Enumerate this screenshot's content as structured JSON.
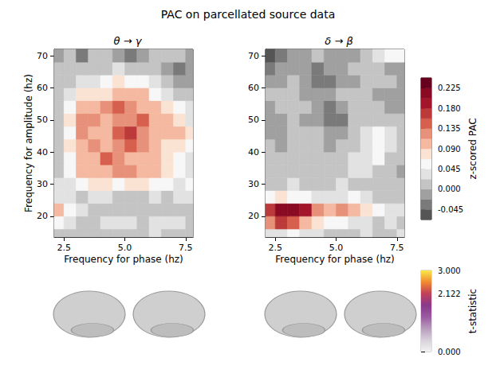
{
  "chart_data": {
    "type": "heatmap",
    "title": "PAC on parcellated source data",
    "xlim": [
      2.1,
      7.8
    ],
    "ylim": [
      13.5,
      72
    ],
    "xticks": [
      2.5,
      {
        "value": 5,
        "label": "5.0"
      },
      7.5
    ],
    "yticks": [
      20,
      30,
      40,
      50,
      60,
      70
    ],
    "panels": [
      {
        "title": "θ → γ",
        "xlabel": "Frequency for phase (hz)",
        "ylabel": "Frequency for amplitude (hz)",
        "x": [
          2.25,
          2.75,
          3.25,
          3.75,
          4.25,
          4.75,
          5.25,
          5.75,
          6.25,
          6.75,
          7.25,
          7.75
        ],
        "y": [
          14,
          18,
          22,
          26,
          30,
          34,
          38,
          42,
          46,
          50,
          54,
          58,
          62,
          66,
          70
        ],
        "values": [
          [
            0.02,
            0.01,
            0,
            0.01,
            0.02,
            0.02,
            0.01,
            0.02,
            0.03,
            0.02,
            0.01,
            0.02
          ],
          [
            0.06,
            0.03,
            0.02,
            0.02,
            0.03,
            0.04,
            0.03,
            0.02,
            0.03,
            0.04,
            0.03,
            0.02
          ],
          [
            0.1,
            0.05,
            0.03,
            0.02,
            0.01,
            0.02,
            0.01,
            0,
            0.01,
            0.02,
            0.01,
            0
          ],
          [
            0.04,
            0.03,
            0.02,
            0.04,
            0.03,
            0.02,
            0.01,
            0.02,
            0.03,
            0.02,
            0.03,
            0.04
          ],
          [
            0.03,
            0.04,
            0.06,
            0.08,
            0.07,
            0.06,
            0.07,
            0.08,
            0.06,
            0.05,
            0.04,
            0.05
          ],
          [
            0.02,
            0.05,
            0.09,
            0.11,
            0.1,
            0.12,
            0.13,
            0.1,
            0.09,
            0.07,
            0.05,
            0.04
          ],
          [
            0.01,
            0.06,
            0.1,
            0.11,
            0.14,
            0.12,
            0.11,
            0.1,
            0.11,
            0.08,
            0.05,
            0.03
          ],
          [
            0.02,
            0.07,
            0.11,
            0.12,
            0.1,
            0.13,
            0.15,
            0.12,
            0.09,
            0.07,
            0.08,
            0.06
          ],
          [
            0.01,
            0.06,
            0.12,
            0.11,
            0.1,
            0.14,
            0.16,
            0.12,
            0.1,
            0.09,
            0.1,
            0.07
          ],
          [
            0.02,
            0.08,
            0.13,
            0.12,
            0.11,
            0.12,
            0.13,
            0.14,
            0.11,
            0.1,
            0.08,
            0.04
          ],
          [
            0.01,
            0.06,
            0.11,
            0.1,
            0.12,
            0.14,
            0.12,
            0.1,
            0.09,
            0.07,
            0.05,
            0.03
          ],
          [
            0,
            0.03,
            0.07,
            0.08,
            0.07,
            0.09,
            0.11,
            0.09,
            0.06,
            0.04,
            0.02,
            0.01
          ],
          [
            0,
            0.01,
            0.03,
            0.04,
            0.05,
            0.07,
            0.06,
            0.05,
            0.03,
            0.01,
            -0.01,
            -0.01
          ],
          [
            0.01,
            0,
            0.01,
            0.02,
            0.02,
            0.03,
            0.02,
            0.01,
            0,
            -0.02,
            -0.03,
            -0.02
          ],
          [
            -0.01,
            0,
            -0.03,
            0,
            0.01,
            -0.01,
            -0.03,
            -0.02,
            0,
            0.01,
            0,
            -0.01
          ]
        ]
      },
      {
        "title": "δ → β",
        "xlabel": "Frequency for phase (hz)",
        "x": [
          2.25,
          2.75,
          3.25,
          3.75,
          4.25,
          4.75,
          5.25,
          5.75,
          6.25,
          6.75,
          7.25,
          7.75
        ],
        "y": [
          14,
          18,
          22,
          26,
          30,
          34,
          38,
          42,
          46,
          50,
          54,
          58,
          62,
          66,
          70
        ],
        "values": [
          [
            0.03,
            0.04,
            0.05,
            0.04,
            0.03,
            0.02,
            0.01,
            0.02,
            0.03,
            0.02,
            0.02,
            0.03
          ],
          [
            0.12,
            0.16,
            0.15,
            0.11,
            0.07,
            0.05,
            0.06,
            0.04,
            0.03,
            0.02,
            0.03,
            0.02
          ],
          [
            0.16,
            0.22,
            0.21,
            0.18,
            0.13,
            0.11,
            0.12,
            0.1,
            0.08,
            0.05,
            0.03,
            0.03
          ],
          [
            0.05,
            0.07,
            0.06,
            0.05,
            0.04,
            0.03,
            0.04,
            0.05,
            0.03,
            0.02,
            0.01,
            0
          ],
          [
            0.01,
            0.02,
            0.03,
            0.02,
            0.01,
            0.02,
            0.03,
            0.02,
            0.01,
            0,
            0.01,
            0.02
          ],
          [
            0,
            0.01,
            0.02,
            0.01,
            0,
            0.01,
            0.02,
            0.04,
            0.03,
            0.01,
            0,
            -0.01
          ],
          [
            0.01,
            0,
            0.01,
            0.02,
            0.01,
            0,
            0.01,
            0.03,
            0.04,
            0.05,
            0.02,
            0.01
          ],
          [
            0,
            -0.01,
            0,
            0.01,
            0,
            -0.01,
            0,
            0.02,
            0.04,
            0.06,
            0.03,
            0.01
          ],
          [
            -0.01,
            -0.02,
            0,
            0.01,
            0,
            -0.02,
            -0.01,
            0.01,
            0.03,
            0.05,
            0.04,
            0.02
          ],
          [
            -0.02,
            -0.01,
            0,
            -0.01,
            -0.02,
            -0.04,
            -0.03,
            0,
            0.01,
            0.02,
            0.01,
            0
          ],
          [
            -0.01,
            0,
            0.01,
            0,
            -0.01,
            -0.03,
            -0.02,
            0,
            0.01,
            0,
            -0.01,
            -0.02
          ],
          [
            0,
            0.01,
            0,
            -0.01,
            -0.02,
            -0.01,
            0,
            0.01,
            0,
            -0.01,
            -0.02,
            -0.01
          ],
          [
            -0.02,
            -0.01,
            0,
            -0.02,
            -0.03,
            -0.04,
            -0.02,
            -0.01,
            0,
            0.01,
            0,
            -0.01
          ],
          [
            -0.03,
            -0.02,
            -0.01,
            -0.02,
            -0.03,
            -0.02,
            -0.01,
            0,
            0.01,
            0,
            -0.01,
            -0.02
          ],
          [
            -0.05,
            -0.04,
            -0.02,
            -0.01,
            0,
            -0.01,
            -0.02,
            -0.01,
            0,
            0.03,
            0.05,
            0.06
          ]
        ]
      }
    ],
    "colorbar": {
      "label": "z-scored PAC",
      "lim": [
        -0.0675,
        0.2475
      ],
      "levels": [
        -0.0675,
        -0.045,
        -0.0225,
        0,
        0.0225,
        0.045,
        0.0675,
        0.09,
        0.1125,
        0.135,
        0.1575,
        0.18,
        0.2025,
        0.225,
        0.2475
      ],
      "colors": [
        "#555555",
        "#7a7a7a",
        "#a0a0a0",
        "#c4c4c4",
        "#e2e2e2",
        "#f7f7f7",
        "#fbe3d4",
        "#f4b9a0",
        "#e8917a",
        "#d6604d",
        "#bd3a3a",
        "#a2152a",
        "#8a0a24",
        "#67001f"
      ],
      "ticks": [
        -0.045,
        {
          "value": 0,
          "label": "0.000"
        },
        0.045,
        {
          "value": 0.09,
          "label": "0.090"
        },
        0.135,
        {
          "value": 0.18,
          "label": "0.180"
        },
        0.225
      ]
    },
    "tstat_colorbar": {
      "label": "t-statistic",
      "lim": [
        0,
        3
      ],
      "colors": [
        "#f2f2f2",
        "#d8d0da",
        "#b79cbc",
        "#9a5aa0",
        "#8a3a8a",
        "#c0405a",
        "#f08a30",
        "#fbe84a"
      ],
      "ticks": [
        {
          "value": 0,
          "label": "0.000"
        },
        2.122,
        {
          "value": 3,
          "label": "3.000"
        }
      ]
    }
  }
}
